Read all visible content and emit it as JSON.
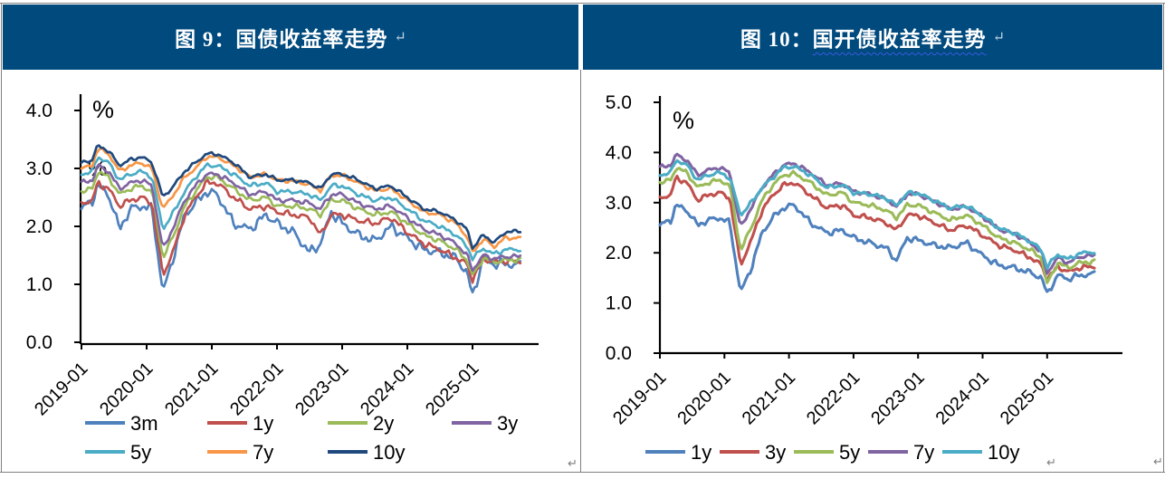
{
  "document": {
    "background": "#ffffff",
    "border_color": "#7f7f7f",
    "header_bg": "#004a7e",
    "header_text_color": "#ffffff",
    "paragraph_mark": "↵",
    "cell_end_mark": "↵"
  },
  "figures": [
    {
      "title_prefix": "图 9：",
      "title_main": "国债收益率走势",
      "spellcheck_underline": false
    },
    {
      "title_prefix": "图 10：",
      "title_main": "国开债收益率走势",
      "spellcheck_underline": true
    }
  ],
  "chart_data": [
    {
      "type": "line",
      "title": "图 9：国债收益率走势",
      "ylabel": "%",
      "percent_labels": [
        "%",
        "%"
      ],
      "ylim": [
        0.0,
        4.0
      ],
      "ytick_labels": [
        "4.0",
        "3.0",
        "2.0",
        "1.0",
        "0.0"
      ],
      "xtick_labels": [
        "2019-01",
        "2020-01",
        "2021-01",
        "2022-01",
        "2023-01",
        "2024-01",
        "2025-01"
      ],
      "grid": false,
      "legend_position": "bottom",
      "legend_rows": [
        [
          "3m",
          "1y",
          "2y",
          "3y"
        ],
        [
          "5y",
          "7y",
          "10y"
        ]
      ],
      "x_months_since_2019_01": [
        0,
        2,
        3,
        5,
        7,
        9,
        11,
        13,
        15,
        17,
        19,
        21,
        23,
        25,
        28,
        31,
        34,
        36,
        39,
        42,
        44,
        46,
        48,
        51,
        54,
        57,
        60,
        63,
        66,
        69,
        71,
        72,
        74,
        76,
        78,
        81
      ],
      "series": [
        {
          "name": "3m",
          "color": "#4f81bd",
          "volatility": 0.055,
          "values": [
            2.3,
            2.45,
            2.7,
            2.55,
            1.95,
            2.3,
            2.35,
            2.3,
            0.85,
            1.5,
            2.2,
            2.4,
            2.6,
            2.55,
            2.05,
            1.95,
            2.2,
            2.05,
            1.9,
            1.55,
            1.7,
            2.25,
            2.05,
            1.85,
            1.75,
            2.0,
            1.8,
            1.6,
            1.55,
            1.45,
            1.2,
            0.8,
            1.45,
            1.35,
            1.35,
            1.33
          ]
        },
        {
          "name": "1y",
          "color": "#c0504d",
          "volatility": 0.035,
          "values": [
            2.4,
            2.45,
            2.75,
            2.65,
            2.35,
            2.45,
            2.5,
            2.4,
            1.15,
            1.6,
            2.2,
            2.5,
            2.75,
            2.75,
            2.5,
            2.3,
            2.35,
            2.25,
            2.2,
            2.15,
            1.85,
            2.2,
            2.2,
            2.1,
            2.05,
            2.15,
            1.9,
            1.7,
            1.6,
            1.45,
            1.35,
            1.08,
            1.45,
            1.38,
            1.4,
            1.4
          ]
        },
        {
          "name": "2y",
          "color": "#9bbb59",
          "volatility": 0.028,
          "values": [
            2.6,
            2.65,
            2.95,
            2.85,
            2.55,
            2.65,
            2.7,
            2.6,
            1.45,
            1.85,
            2.35,
            2.6,
            2.85,
            2.85,
            2.65,
            2.45,
            2.5,
            2.35,
            2.35,
            2.3,
            2.2,
            2.45,
            2.45,
            2.3,
            2.2,
            2.25,
            2.05,
            1.85,
            1.75,
            1.6,
            1.42,
            1.15,
            1.45,
            1.38,
            1.42,
            1.42
          ]
        },
        {
          "name": "3y",
          "color": "#8064a2",
          "volatility": 0.026,
          "values": [
            2.75,
            2.8,
            3.05,
            2.95,
            2.65,
            2.75,
            2.8,
            2.7,
            1.6,
            2.0,
            2.45,
            2.7,
            2.9,
            2.9,
            2.75,
            2.55,
            2.6,
            2.45,
            2.45,
            2.4,
            2.3,
            2.55,
            2.55,
            2.4,
            2.3,
            2.35,
            2.15,
            1.95,
            1.85,
            1.7,
            1.5,
            1.25,
            1.5,
            1.44,
            1.48,
            1.48
          ]
        },
        {
          "name": "5y",
          "color": "#4bacc6",
          "volatility": 0.025,
          "values": [
            2.9,
            2.95,
            3.2,
            3.1,
            2.8,
            2.9,
            2.95,
            2.85,
            1.95,
            2.25,
            2.6,
            2.85,
            3.05,
            3.05,
            2.9,
            2.7,
            2.75,
            2.6,
            2.6,
            2.55,
            2.45,
            2.7,
            2.7,
            2.55,
            2.45,
            2.5,
            2.3,
            2.1,
            2.0,
            1.85,
            1.65,
            1.45,
            1.62,
            1.52,
            1.6,
            1.6
          ]
        },
        {
          "name": "7y",
          "color": "#f79646",
          "volatility": 0.022,
          "values": [
            3.0,
            3.05,
            3.35,
            3.25,
            2.95,
            3.05,
            3.1,
            3.0,
            2.3,
            2.55,
            2.85,
            3.0,
            3.2,
            3.2,
            3.05,
            2.85,
            2.9,
            2.8,
            2.78,
            2.72,
            2.62,
            2.88,
            2.88,
            2.75,
            2.62,
            2.65,
            2.45,
            2.25,
            2.2,
            2.05,
            1.82,
            1.55,
            1.78,
            1.65,
            1.8,
            1.8
          ]
        },
        {
          "name": "10y",
          "color": "#1f497d",
          "volatility": 0.02,
          "values": [
            3.1,
            3.15,
            3.4,
            3.3,
            3.05,
            3.15,
            3.2,
            3.1,
            2.5,
            2.7,
            2.95,
            3.1,
            3.25,
            3.25,
            3.1,
            2.85,
            2.9,
            2.8,
            2.8,
            2.75,
            2.65,
            2.9,
            2.9,
            2.8,
            2.65,
            2.7,
            2.5,
            2.3,
            2.25,
            2.1,
            1.95,
            1.63,
            1.85,
            1.72,
            1.9,
            1.92
          ]
        }
      ]
    },
    {
      "type": "line",
      "title": "图 10：国开债收益率走势",
      "ylabel": "%",
      "percent_labels": [
        "%"
      ],
      "ylim": [
        0.0,
        5.0
      ],
      "ytick_labels": [
        "5.0",
        "4.0",
        "3.0",
        "2.0",
        "1.0",
        "0.0"
      ],
      "xtick_labels": [
        "2019-01",
        "2020-01",
        "2021-01",
        "2022-01",
        "2023-01",
        "2024-01",
        "2025-01"
      ],
      "grid": false,
      "legend_position": "bottom",
      "legend_rows": [
        [
          "1y",
          "3y",
          "5y",
          "7y",
          "10y"
        ]
      ],
      "x_months_since_2019_01": [
        0,
        2,
        3,
        5,
        7,
        9,
        11,
        13,
        15,
        17,
        19,
        21,
        23,
        25,
        28,
        31,
        34,
        36,
        39,
        42,
        44,
        46,
        48,
        51,
        54,
        57,
        60,
        63,
        66,
        69,
        71,
        72,
        74,
        76,
        78,
        81
      ],
      "series": [
        {
          "name": "1y",
          "color": "#4f81bd",
          "volatility": 0.04,
          "values": [
            2.55,
            2.65,
            2.95,
            2.85,
            2.55,
            2.65,
            2.7,
            2.6,
            1.2,
            1.7,
            2.4,
            2.7,
            2.9,
            2.95,
            2.6,
            2.4,
            2.45,
            2.3,
            2.2,
            2.1,
            1.85,
            2.3,
            2.25,
            2.15,
            2.1,
            2.2,
            1.95,
            1.75,
            1.7,
            1.6,
            1.5,
            1.18,
            1.55,
            1.48,
            1.55,
            1.58
          ]
        },
        {
          "name": "3y",
          "color": "#c0504d",
          "volatility": 0.032,
          "values": [
            3.1,
            3.15,
            3.5,
            3.4,
            3.05,
            3.15,
            3.2,
            3.1,
            1.75,
            2.25,
            2.85,
            3.15,
            3.35,
            3.4,
            3.15,
            2.9,
            2.95,
            2.75,
            2.7,
            2.6,
            2.45,
            2.75,
            2.75,
            2.6,
            2.45,
            2.55,
            2.35,
            2.15,
            2.05,
            1.9,
            1.75,
            1.48,
            1.72,
            1.62,
            1.7,
            1.73
          ]
        },
        {
          "name": "5y",
          "color": "#9bbb59",
          "volatility": 0.028,
          "values": [
            3.4,
            3.45,
            3.7,
            3.6,
            3.3,
            3.4,
            3.45,
            3.35,
            2.05,
            2.5,
            3.05,
            3.35,
            3.55,
            3.58,
            3.4,
            3.15,
            3.2,
            3.0,
            2.95,
            2.85,
            2.7,
            2.95,
            2.95,
            2.8,
            2.65,
            2.75,
            2.55,
            2.3,
            2.2,
            2.05,
            1.9,
            1.38,
            1.8,
            1.7,
            1.8,
            1.83
          ]
        },
        {
          "name": "7y",
          "color": "#8064a2",
          "volatility": 0.026,
          "values": [
            3.7,
            3.75,
            3.95,
            3.85,
            3.55,
            3.65,
            3.7,
            3.6,
            2.5,
            2.9,
            3.3,
            3.55,
            3.75,
            3.78,
            3.6,
            3.35,
            3.38,
            3.22,
            3.17,
            3.07,
            2.92,
            3.17,
            3.17,
            3.02,
            2.87,
            2.92,
            2.72,
            2.47,
            2.37,
            2.2,
            2.0,
            1.6,
            1.9,
            1.8,
            1.92,
            1.95
          ]
        },
        {
          "name": "10y",
          "color": "#4bacc6",
          "volatility": 0.026,
          "values": [
            3.55,
            3.6,
            3.85,
            3.75,
            3.45,
            3.55,
            3.6,
            3.5,
            2.75,
            3.0,
            3.3,
            3.5,
            3.7,
            3.72,
            3.55,
            3.3,
            3.35,
            3.2,
            3.17,
            3.09,
            2.94,
            3.19,
            3.19,
            3.04,
            2.89,
            2.94,
            2.74,
            2.49,
            2.39,
            2.22,
            2.05,
            1.72,
            1.97,
            1.87,
            1.99,
            2.02
          ]
        }
      ]
    }
  ]
}
